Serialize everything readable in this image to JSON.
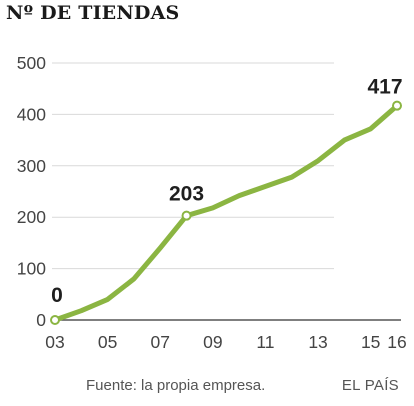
{
  "title": "Nº DE TIENDAS",
  "source": "Fuente: la propia empresa.",
  "brand": "EL PAÍS",
  "colors": {
    "line": "#8bb542",
    "grid": "#d9d9d9",
    "text": "#444444"
  },
  "chart_data": {
    "type": "line",
    "title": "Nº DE TIENDAS",
    "xlabel": "",
    "ylabel": "",
    "xlim": [
      2003,
      2016
    ],
    "ylim": [
      0,
      500
    ],
    "grid": "horizontal",
    "x_ticks": [
      "03",
      "05",
      "07",
      "09",
      "11",
      "13",
      "15",
      "16"
    ],
    "y_ticks": [
      "0",
      "100",
      "200",
      "300",
      "400",
      "500"
    ],
    "series": [
      {
        "x": [
          2003,
          2004,
          2005,
          2006,
          2007,
          2008,
          2009,
          2010,
          2011,
          2012,
          2013,
          2014,
          2015,
          2016
        ],
        "values": [
          0,
          18,
          40,
          80,
          140,
          203,
          218,
          242,
          260,
          278,
          310,
          350,
          372,
          417
        ]
      }
    ],
    "annotations": [
      {
        "x": 2003,
        "y": 0,
        "label": "0"
      },
      {
        "x": 2008,
        "y": 203,
        "label": "203"
      },
      {
        "x": 2016,
        "y": 417,
        "label": "417"
      }
    ]
  }
}
